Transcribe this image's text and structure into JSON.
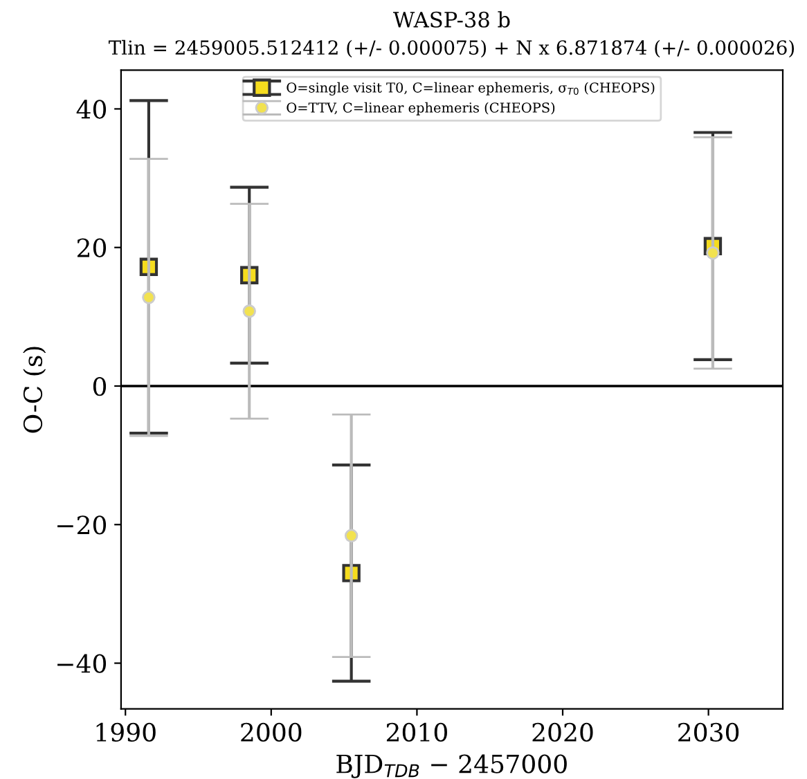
{
  "chart_data": {
    "type": "scatter",
    "title": "WASP-38 b",
    "subtitle": "Tlin = 2459005.512412 (+/- 0.000075) + N x 6.871874 (+/- 0.000026)",
    "xlabel": "BJD$_{TDB}$ − 2457000",
    "ylabel": "O-C (s)",
    "xlim": [
      1989.7,
      2035.1
    ],
    "ylim": [
      -46.6,
      45.6
    ],
    "xticks": [
      1990,
      2000,
      2010,
      2020,
      2030
    ],
    "yticks": [
      -40,
      -20,
      0,
      20,
      40
    ],
    "grid": false,
    "legend": "top",
    "ref_lines": [
      {
        "axis": "y",
        "value": 0,
        "color": "#000000"
      }
    ],
    "series": [
      {
        "name": "O=single visit T0, C=linear ephemeris, σ$_{T0}$ (CHEOPS)",
        "marker": "square",
        "color": "#f5dc1e",
        "x": [
          1991.6,
          1998.5,
          2005.5,
          2030.3
        ],
        "values": [
          17.2,
          16.0,
          -27.0,
          20.2
        ],
        "errors": [
          24.0,
          12.7,
          15.6,
          16.4
        ]
      },
      {
        "name": "O=TTV, C=linear ephemeris (CHEOPS)",
        "marker": "circle",
        "color": "#f2e250",
        "x": [
          1991.6,
          1998.5,
          2005.5,
          2030.3
        ],
        "values": [
          12.8,
          10.8,
          -21.6,
          19.2
        ],
        "errors": [
          20.0,
          15.5,
          17.5,
          16.7
        ]
      }
    ]
  }
}
